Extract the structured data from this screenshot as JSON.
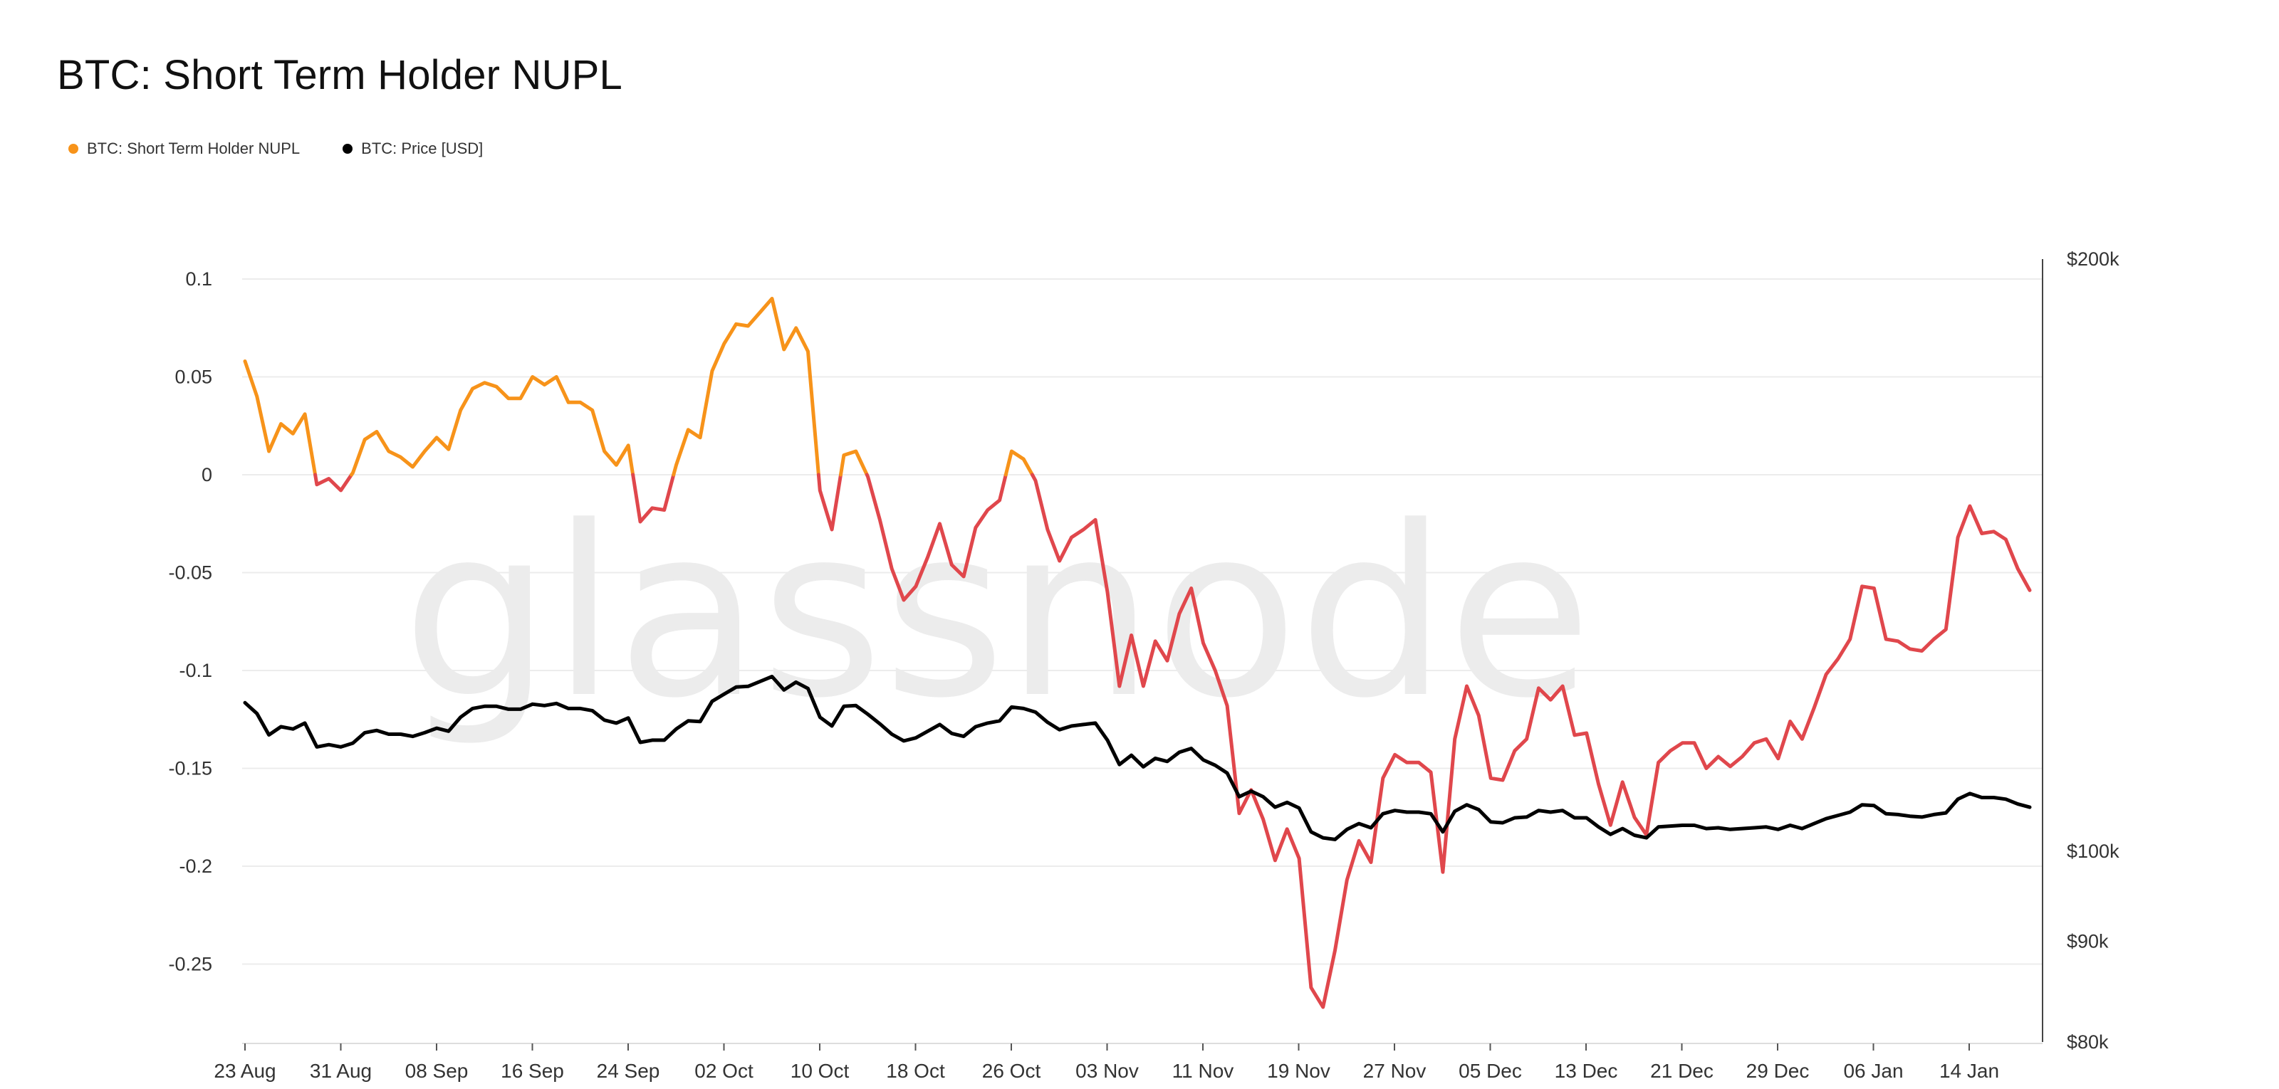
{
  "chart_data": {
    "type": "line",
    "title": "BTC: Short Term Holder NUPL",
    "legend": [
      {
        "name": "BTC: Short Term Holder NUPL",
        "color": "#f7931a"
      },
      {
        "name": "BTC: Price [USD]",
        "color": "#000000"
      }
    ],
    "watermark": "glassnode",
    "colors": {
      "nupl_positive": "#f7931a",
      "nupl_negative": "#e0474c",
      "price": "#000000",
      "grid": "#ececec",
      "axis": "#333333"
    },
    "x_tick_labels": [
      "23 Aug",
      "31 Aug",
      "08 Sep",
      "16 Sep",
      "24 Sep",
      "02 Oct",
      "10 Oct",
      "18 Oct",
      "26 Oct",
      "03 Nov",
      "11 Nov",
      "19 Nov",
      "27 Nov",
      "05 Dec",
      "13 Dec",
      "21 Dec",
      "29 Dec",
      "06 Jan",
      "14 Jan"
    ],
    "y_left": {
      "ticks": [
        0.1,
        0.05,
        0,
        -0.05,
        -0.1,
        -0.15,
        -0.2,
        -0.25
      ],
      "tick_labels": [
        "0.1",
        "0.05",
        "0",
        "-0.05",
        "-0.1",
        "-0.15",
        "-0.2",
        "-0.25"
      ],
      "range": [
        -0.29,
        0.1
      ]
    },
    "y_right": {
      "scale": "log",
      "ticks": [
        200000,
        100000,
        90000,
        80000
      ],
      "tick_labels": [
        "$200k",
        "$100k",
        "$90k",
        "$80k"
      ],
      "range": [
        80000,
        200000
      ]
    },
    "series": [
      {
        "name": "BTC: Short Term Holder NUPL",
        "axis": "left",
        "values": [
          0.058,
          0.04,
          0.012,
          0.026,
          0.021,
          0.031,
          -0.005,
          -0.002,
          -0.008,
          0.001,
          0.018,
          0.022,
          0.012,
          0.009,
          0.004,
          0.012,
          0.019,
          0.013,
          0.033,
          0.044,
          0.047,
          0.045,
          0.039,
          0.039,
          0.05,
          0.046,
          0.05,
          0.037,
          0.037,
          0.033,
          0.012,
          0.005,
          0.015,
          -0.024,
          -0.017,
          -0.018,
          0.005,
          0.023,
          0.019,
          0.053,
          0.067,
          0.077,
          0.076,
          0.083,
          0.09,
          0.064,
          0.075,
          0.063,
          -0.008,
          -0.028,
          0.01,
          0.012,
          -0.001,
          -0.023,
          -0.048,
          -0.064,
          -0.057,
          -0.042,
          -0.025,
          -0.046,
          -0.052,
          -0.027,
          -0.018,
          -0.013,
          0.012,
          0.008,
          -0.003,
          -0.028,
          -0.044,
          -0.032,
          -0.028,
          -0.023,
          -0.06,
          -0.108,
          -0.082,
          -0.108,
          -0.085,
          -0.095,
          -0.071,
          -0.058,
          -0.086,
          -0.1,
          -0.118,
          -0.173,
          -0.161,
          -0.176,
          -0.197,
          -0.181,
          -0.196,
          -0.262,
          -0.272,
          -0.243,
          -0.207,
          -0.187,
          -0.198,
          -0.155,
          -0.143,
          -0.147,
          -0.147,
          -0.152,
          -0.203,
          -0.135,
          -0.108,
          -0.123,
          -0.155,
          -0.156,
          -0.141,
          -0.135,
          -0.109,
          -0.115,
          -0.108,
          -0.133,
          -0.132,
          -0.158,
          -0.179,
          -0.157,
          -0.175,
          -0.184,
          -0.147,
          -0.141,
          -0.137,
          -0.137,
          -0.15,
          -0.144,
          -0.149,
          -0.144,
          -0.137,
          -0.135,
          -0.145,
          -0.126,
          -0.135,
          -0.119,
          -0.102,
          -0.094,
          -0.084,
          -0.057,
          -0.058,
          -0.084,
          -0.085,
          -0.089,
          -0.09,
          -0.084,
          -0.079,
          -0.032,
          -0.016,
          -0.03,
          -0.029,
          -0.033,
          -0.048,
          -0.059
        ]
      },
      {
        "name": "BTC: Price [USD]",
        "axis": "right",
        "values": [
          119000,
          117500,
          114600,
          115700,
          115400,
          116200,
          113000,
          113300,
          113000,
          113500,
          114900,
          115200,
          114700,
          114700,
          114400,
          114900,
          115500,
          115100,
          117000,
          118200,
          118500,
          118500,
          118100,
          118100,
          118800,
          118600,
          118900,
          118200,
          118200,
          117900,
          116600,
          116200,
          116900,
          113600,
          113900,
          113900,
          115400,
          116500,
          116400,
          119200,
          120200,
          121200,
          121300,
          122000,
          122700,
          120800,
          121900,
          121000,
          117000,
          115800,
          118500,
          118600,
          117400,
          116100,
          114700,
          113800,
          114200,
          115100,
          116000,
          114800,
          114400,
          115700,
          116200,
          116500,
          118400,
          118200,
          117700,
          116300,
          115300,
          115800,
          116000,
          116200,
          113900,
          110700,
          111900,
          110400,
          111500,
          111100,
          112300,
          112800,
          111300,
          110600,
          109600,
          106600,
          107300,
          106600,
          105300,
          105900,
          105200,
          102300,
          101600,
          101400,
          102600,
          103300,
          102800,
          104500,
          104900,
          104700,
          104700,
          104500,
          102300,
          104800,
          105600,
          105000,
          103500,
          103400,
          104000,
          104100,
          104900,
          104700,
          104900,
          104000,
          104000,
          102900,
          102000,
          102700,
          101900,
          101600,
          102900,
          103000,
          103100,
          103100,
          102700,
          102800,
          102600,
          102700,
          102800,
          102900,
          102600,
          103100,
          102700,
          103300,
          103900,
          104300,
          104700,
          105600,
          105500,
          104500,
          104400,
          104200,
          104100,
          104400,
          104600,
          106300,
          107000,
          106500,
          106500,
          106300,
          105700,
          105300
        ]
      }
    ]
  }
}
